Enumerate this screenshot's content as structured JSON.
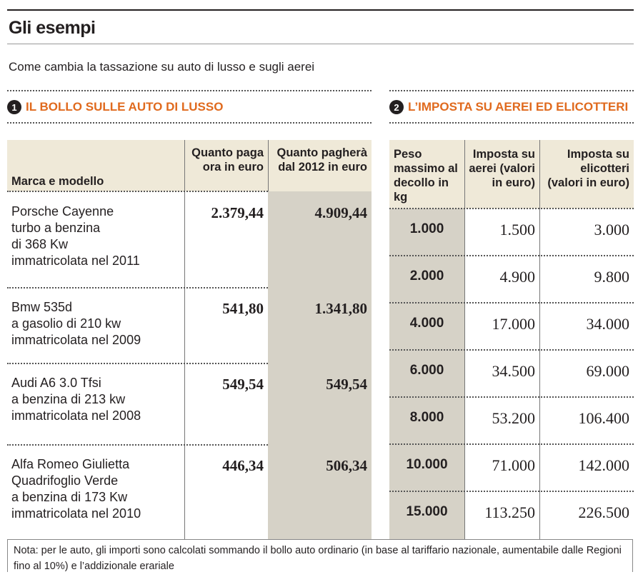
{
  "title": "Gli esempi",
  "subtitle": "Come cambia la tassazione su auto di lusso e sugli aerei",
  "section1": {
    "number": "1",
    "heading": "IL BOLLO SULLE AUTO DI LUSSO",
    "columns": [
      "Marca e modello",
      "Quanto paga ora in euro",
      "Quanto pagherà dal 2012 in euro"
    ],
    "rows": [
      {
        "model": [
          "Porsche Cayenne",
          "turbo a benzina",
          "di 368 Kw",
          "immatricolata nel 2011"
        ],
        "now": "2.379,44",
        "from2012": "4.909,44"
      },
      {
        "model": [
          "Bmw 535d",
          "a gasolio di 210 kw",
          "immatricolata nel 2009"
        ],
        "now": "541,80",
        "from2012": "1.341,80"
      },
      {
        "model": [
          "Audi A6 3.0 Tfsi",
          "a benzina di 213 kw",
          "immatricolata nel 2008"
        ],
        "now": "549,54",
        "from2012": "549,54"
      },
      {
        "model": [
          "Alfa Romeo Giulietta",
          "Quadrifoglio Verde",
          "a benzina di 173 Kw",
          "immatricolata nel 2010"
        ],
        "now": "446,34",
        "from2012": "506,34"
      }
    ]
  },
  "section2": {
    "number": "2",
    "heading": "L’IMPOSTA SU AEREI ED ELICOTTERI",
    "columns": [
      "Peso massimo al decollo in kg",
      "Imposta su aerei (valori in euro)",
      "Imposta su elicotteri (valori in euro)"
    ],
    "rows": [
      {
        "weight": "1.000",
        "planes": "1.500",
        "helicopters": "3.000"
      },
      {
        "weight": "2.000",
        "planes": "4.900",
        "helicopters": "9.800"
      },
      {
        "weight": "4.000",
        "planes": "17.000",
        "helicopters": "34.000"
      },
      {
        "weight": "6.000",
        "planes": "34.500",
        "helicopters": "69.000"
      },
      {
        "weight": "8.000",
        "planes": "53.200",
        "helicopters": "106.400"
      },
      {
        "weight": "10.000",
        "planes": "71.000",
        "helicopters": "142.000"
      },
      {
        "weight": "15.000",
        "planes": "113.250",
        "helicopters": "226.500"
      }
    ]
  },
  "note": "Nota: per le auto, gli importi sono calcolati sommando il bollo auto ordinario (in base al tariffario nazionale, aumentabile dalle Regioni fino al 10%) e l’addizionale erariale",
  "colors": {
    "accent": "#e06a1e",
    "header_bg": "#efe9d8",
    "shaded_col": "#d6d2c7"
  }
}
